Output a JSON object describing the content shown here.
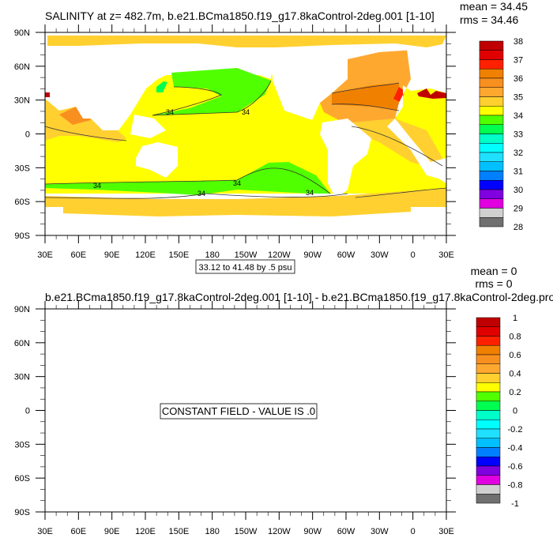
{
  "chart_data": [
    {
      "type": "heatmap",
      "title": "SALINITY at z= 482.7m, b.e21.BCma1850.f19_g17.8kaControl-2deg.001 [1-10]",
      "stats": {
        "mean": "mean = 34.45",
        "rms": "rms = 34.46"
      },
      "x_ticks": [
        "30E",
        "60E",
        "90E",
        "120E",
        "150E",
        "180",
        "150W",
        "120W",
        "90W",
        "60W",
        "30W",
        "0",
        "30E"
      ],
      "y_ticks": [
        "90N",
        "60N",
        "30N",
        "0",
        "30S",
        "60S",
        "90S"
      ],
      "contour_info": "33.12 to 41.48 by .5 psu",
      "contour_labels": [
        "34",
        "34",
        "34",
        "34",
        "34",
        "34"
      ],
      "colorbar": {
        "labels": [
          "38",
          "37",
          "36",
          "35",
          "34",
          "33",
          "32",
          "31",
          "30",
          "29",
          "28"
        ],
        "colors": [
          "#c00000",
          "#e00000",
          "#ff2000",
          "#f08000",
          "#f89020",
          "#ffa830",
          "#ffd030",
          "#ffff00",
          "#50ff00",
          "#00ff50",
          "#00ffc8",
          "#00ffff",
          "#20e0ff",
          "#00c0ff",
          "#0080ff",
          "#0000ff",
          "#8000e0",
          "#e000e0",
          "#d0d0d0",
          "#707070"
        ]
      }
    },
    {
      "type": "heatmap",
      "title": "b.e21.BCma1850.f19_g17.8kaControl-2deg.001 [1-10] - b.e21.BCma1850.f19_g17.8kaControl-2deg.pro",
      "stats": {
        "mean": "mean = 0",
        "rms": "rms = 0"
      },
      "x_ticks": [
        "30E",
        "60E",
        "90E",
        "120E",
        "150E",
        "180",
        "150W",
        "120W",
        "90W",
        "60W",
        "30W",
        "0",
        "30E"
      ],
      "y_ticks": [
        "90N",
        "60N",
        "30N",
        "0",
        "30S",
        "60S",
        "90S"
      ],
      "message": "CONSTANT FIELD - VALUE IS .0",
      "colorbar": {
        "labels": [
          "1",
          "0.8",
          "0.6",
          "0.4",
          "0.2",
          "0",
          "-0.2",
          "-0.4",
          "-0.6",
          "-0.8",
          "-1"
        ],
        "colors": [
          "#c00000",
          "#e00000",
          "#ff2000",
          "#f08000",
          "#f89020",
          "#ffa830",
          "#ffd030",
          "#ffff00",
          "#50ff00",
          "#00ff50",
          "#00ffc8",
          "#00ffff",
          "#20e0ff",
          "#00c0ff",
          "#0080ff",
          "#0000ff",
          "#8000e0",
          "#e000e0",
          "#d0d0d0",
          "#707070"
        ]
      }
    }
  ]
}
